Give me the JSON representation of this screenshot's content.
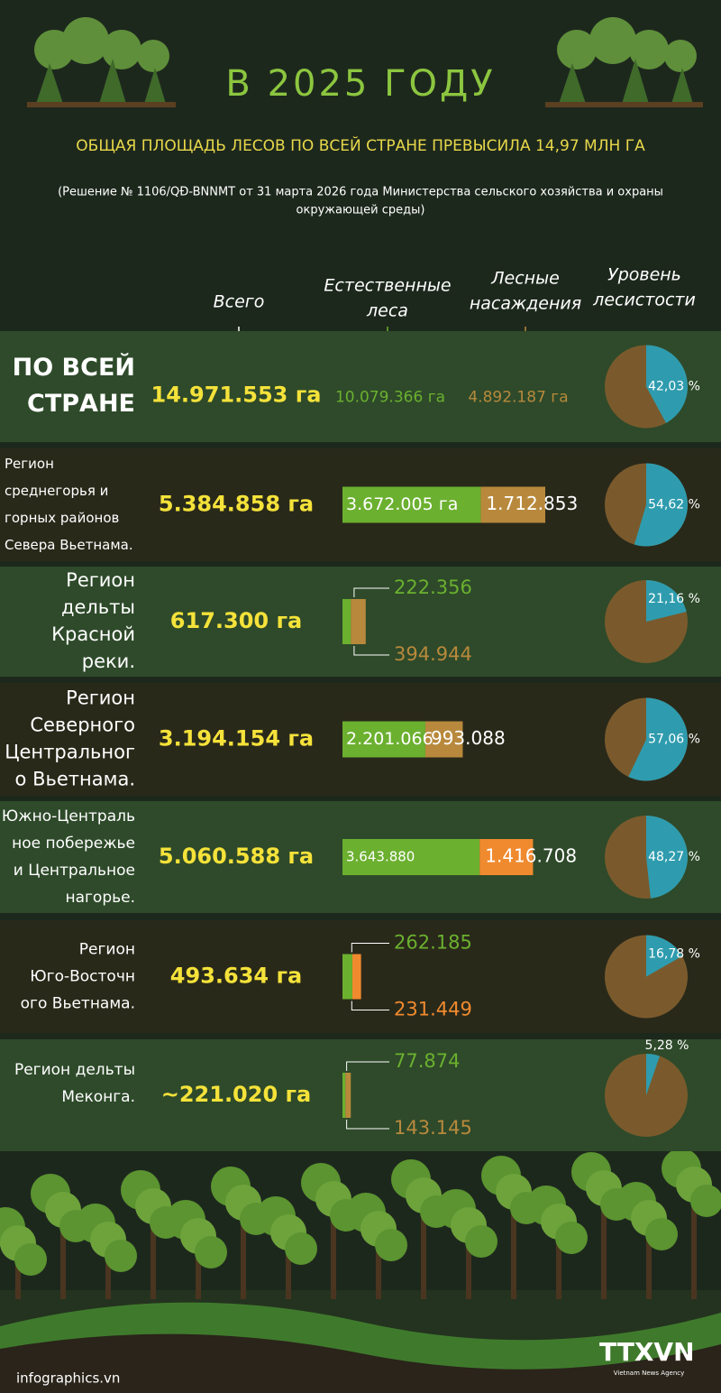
{
  "header": {
    "title": "В 2025 ГОДУ",
    "subtitle": "ОБЩАЯ ПЛОЩАДЬ ЛЕСОВ ПО ВСЕЙ СТРАНЕ ПРЕВЫСИЛА 14,97 МЛН ГА",
    "note": [
      "(Решение № 1106/QĐ-BNNMT от 31 марта 2026 года Министерства сельского хозяйства и охраны",
      "окружающей среды)"
    ]
  },
  "columns": {
    "total": [
      "Всего"
    ],
    "natural": [
      "Естественные",
      "леса"
    ],
    "planted": [
      "Лесные",
      "насаждения"
    ],
    "coverage": [
      "Уровень",
      "лесистости"
    ]
  },
  "colors": {
    "natural": "#6bb02f",
    "pie_rest": "#7a5a2c",
    "pie_coverage": "#2e9cae"
  },
  "rows": [
    {
      "name": [
        "ПО ВСЕЙ",
        "СТРАНЕ"
      ],
      "total": "14.971.553 га",
      "natural": 10079366,
      "natural_label": "10.079.366 га",
      "planted": 4892187,
      "planted_label": "4.892.187 га",
      "planted_color": "#b8893c",
      "coverage": 42.03,
      "coverage_label": "42,03 %"
    },
    {
      "name": [
        "Регион",
        "среднегорья и",
        "горных районов",
        "Севера Вьетнама."
      ],
      "total": "5.384.858 га",
      "natural": 3672005,
      "natural_label": "3.672.005 га",
      "planted": 1712853,
      "planted_label": "1.712.853",
      "planted_color": "#b8893c",
      "coverage": 54.62,
      "coverage_label": "54,62 %"
    },
    {
      "name": [
        "Регион",
        "дельты",
        "Красной",
        "реки."
      ],
      "total": "617.300 га",
      "natural": 222356,
      "natural_label": "222.356",
      "planted": 394944,
      "planted_label": "394.944",
      "planted_color": "#b8893c",
      "coverage": 21.16,
      "coverage_label": "21,16 %"
    },
    {
      "name": [
        "Регион",
        "Северного",
        "Центральног",
        "о Вьетнама."
      ],
      "total": "3.194.154 га",
      "natural": 2201066,
      "natural_label": "2.201.066",
      "planted": 993088,
      "planted_label": "993.088",
      "planted_color": "#b8893c",
      "coverage": 57.06,
      "coverage_label": "57,06 %"
    },
    {
      "name": [
        "Южно-Централь",
        "ное побережье",
        "и Центральное",
        "нагорье."
      ],
      "total": "5.060.588 га",
      "natural": 3643880,
      "natural_label": "3.643.880",
      "planted": 1416708,
      "planted_label": "1.416.708",
      "planted_color": "#f08a2e",
      "coverage": 48.27,
      "coverage_label": "48,27 %"
    },
    {
      "name": [
        "Регион",
        "Юго-Восточн",
        "ого Вьетнама."
      ],
      "total": "493.634 га",
      "natural": 262185,
      "natural_label": "262.185",
      "planted": 231449,
      "planted_label": "231.449",
      "planted_color": "#f08a2e",
      "coverage": 16.78,
      "coverage_label": "16,78 %"
    },
    {
      "name": [
        "Регион дельты",
        "Меконга."
      ],
      "total": "~221.020 га",
      "natural": 77874,
      "natural_label": "77.874",
      "planted": 143145,
      "planted_label": "143.145",
      "planted_color": "#b8893c",
      "coverage": 5.28,
      "coverage_label": "5,28 %"
    }
  ],
  "footer": {
    "source": "infographics.vn",
    "logo": "TTXVN",
    "logo_sub": "Vietnam News Agency"
  }
}
